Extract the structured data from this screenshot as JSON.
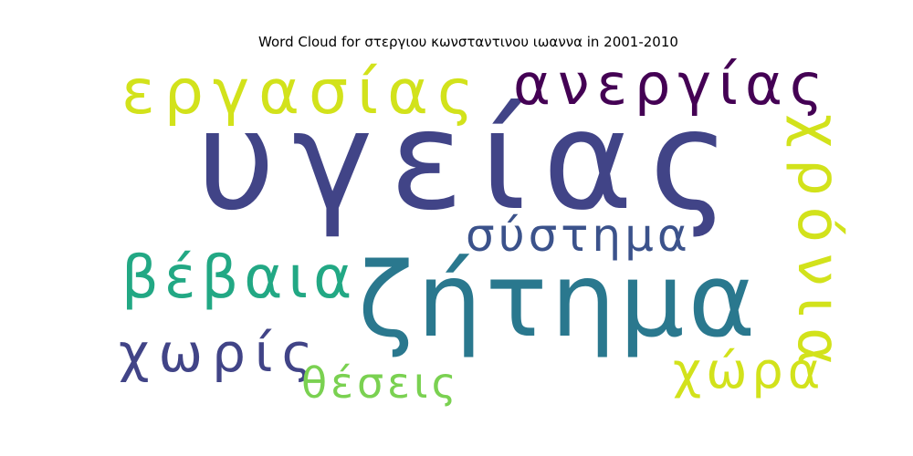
{
  "chart_data": {
    "type": "wordcloud",
    "title": "Word Cloud for στεργιου κωνσταντινου ιωαννα in 2001-2010",
    "words": [
      {
        "text": "υγείας",
        "rank": 1,
        "color": "#414487"
      },
      {
        "text": "ζήτημα",
        "rank": 2,
        "color": "#2a788e"
      },
      {
        "text": "εργασίας",
        "rank": 3,
        "color": "#d2e21b"
      },
      {
        "text": "ανεργίας",
        "rank": 4,
        "color": "#440154"
      },
      {
        "text": "χρόνια",
        "rank": 5,
        "color": "#d2e21b"
      },
      {
        "text": "βέβαια",
        "rank": 6,
        "color": "#22a884"
      },
      {
        "text": "σύστημα",
        "rank": 7,
        "color": "#3b528b"
      },
      {
        "text": "χωρίς",
        "rank": 8,
        "color": "#414487"
      },
      {
        "text": "θέσεις",
        "rank": 9,
        "color": "#7ad151"
      },
      {
        "text": "χώρα",
        "rank": 10,
        "color": "#d2e21b"
      }
    ]
  }
}
